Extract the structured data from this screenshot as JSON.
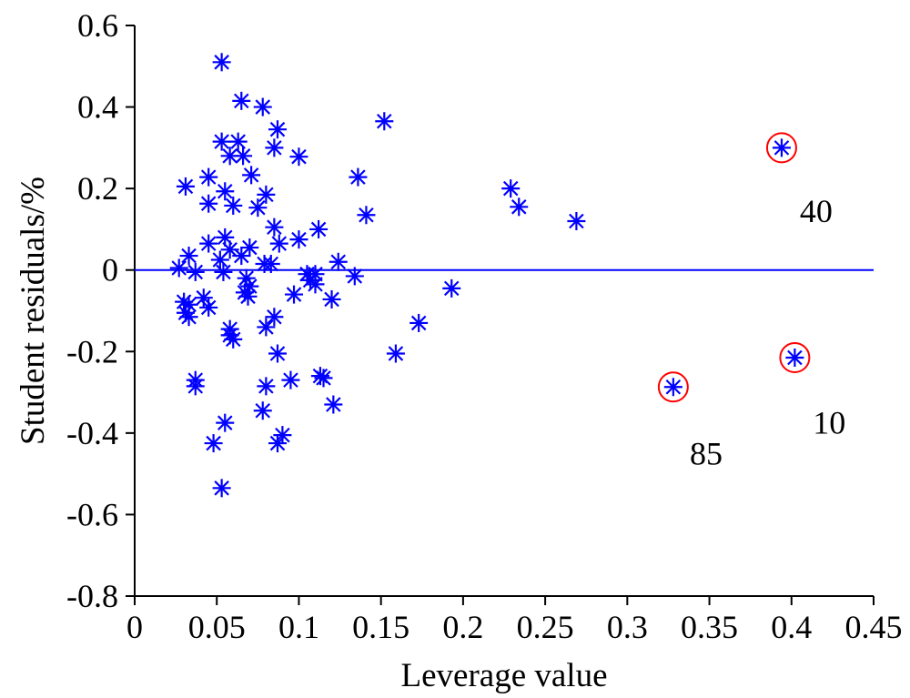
{
  "chart_data": {
    "type": "scatter",
    "title": "",
    "xlabel": "Leverage value",
    "ylabel": "Student residuals/%",
    "xlim": [
      0,
      0.45
    ],
    "ylim": [
      -0.8,
      0.6
    ],
    "x_ticks": [
      "0",
      "0.05",
      "0.1",
      "0.15",
      "0.2",
      "0.25",
      "0.3",
      "0.35",
      "0.4",
      "0.45"
    ],
    "y_ticks": [
      "0.6",
      "0.4",
      "0.2",
      "0",
      "-0.2",
      "-0.4",
      "-0.6",
      "-0.8"
    ],
    "grid": false,
    "reference_line": {
      "y": 0,
      "color": "#0000ff"
    },
    "marker_color": "#0000ff",
    "highlight_color": "#ff0000",
    "points": [
      [
        0.053,
        0.51
      ],
      [
        0.065,
        0.415
      ],
      [
        0.078,
        0.4
      ],
      [
        0.152,
        0.365
      ],
      [
        0.087,
        0.345
      ],
      [
        0.053,
        0.315
      ],
      [
        0.063,
        0.315
      ],
      [
        0.085,
        0.3
      ],
      [
        0.058,
        0.28
      ],
      [
        0.066,
        0.28
      ],
      [
        0.1,
        0.278
      ],
      [
        0.071,
        0.233
      ],
      [
        0.045,
        0.228
      ],
      [
        0.136,
        0.228
      ],
      [
        0.031,
        0.205
      ],
      [
        0.055,
        0.193
      ],
      [
        0.08,
        0.185
      ],
      [
        0.229,
        0.2
      ],
      [
        0.234,
        0.155
      ],
      [
        0.045,
        0.163
      ],
      [
        0.06,
        0.158
      ],
      [
        0.075,
        0.153
      ],
      [
        0.141,
        0.135
      ],
      [
        0.269,
        0.12
      ],
      [
        0.085,
        0.105
      ],
      [
        0.112,
        0.1
      ],
      [
        0.055,
        0.08
      ],
      [
        0.1,
        0.075
      ],
      [
        0.045,
        0.065
      ],
      [
        0.088,
        0.065
      ],
      [
        0.07,
        0.055
      ],
      [
        0.058,
        0.05
      ],
      [
        0.033,
        0.035
      ],
      [
        0.065,
        0.035
      ],
      [
        0.052,
        0.025
      ],
      [
        0.124,
        0.02
      ],
      [
        0.079,
        0.015
      ],
      [
        0.083,
        0.015
      ],
      [
        0.027,
        0.005
      ],
      [
        0.037,
        -0.005
      ],
      [
        0.054,
        -0.005
      ],
      [
        0.105,
        -0.01
      ],
      [
        0.11,
        -0.01
      ],
      [
        0.134,
        -0.015
      ],
      [
        0.068,
        -0.02
      ],
      [
        0.107,
        -0.025
      ],
      [
        0.11,
        -0.035
      ],
      [
        0.07,
        -0.04
      ],
      [
        0.193,
        -0.045
      ],
      [
        0.067,
        -0.055
      ],
      [
        0.097,
        -0.06
      ],
      [
        0.069,
        -0.065
      ],
      [
        0.042,
        -0.068
      ],
      [
        0.12,
        -0.072
      ],
      [
        0.03,
        -0.078
      ],
      [
        0.033,
        -0.085
      ],
      [
        0.045,
        -0.092
      ],
      [
        0.031,
        -0.105
      ],
      [
        0.033,
        -0.115
      ],
      [
        0.085,
        -0.115
      ],
      [
        0.173,
        -0.13
      ],
      [
        0.08,
        -0.14
      ],
      [
        0.058,
        -0.145
      ],
      [
        0.058,
        -0.16
      ],
      [
        0.06,
        -0.17
      ],
      [
        0.159,
        -0.205
      ],
      [
        0.087,
        -0.205
      ],
      [
        0.113,
        -0.26
      ],
      [
        0.037,
        -0.27
      ],
      [
        0.095,
        -0.27
      ],
      [
        0.115,
        -0.265
      ],
      [
        0.037,
        -0.285
      ],
      [
        0.08,
        -0.285
      ],
      [
        0.121,
        -0.33
      ],
      [
        0.078,
        -0.345
      ],
      [
        0.055,
        -0.375
      ],
      [
        0.09,
        -0.405
      ],
      [
        0.048,
        -0.425
      ],
      [
        0.087,
        -0.425
      ],
      [
        0.053,
        -0.535
      ]
    ],
    "highlighted_points": [
      {
        "id": "40",
        "x": 0.394,
        "y": 0.3
      },
      {
        "id": "10",
        "x": 0.402,
        "y": -0.215
      },
      {
        "id": "85",
        "x": 0.328,
        "y": -0.287
      }
    ],
    "annotations": [
      {
        "text": "40",
        "x": 0.415,
        "y": 0.145
      },
      {
        "text": "10",
        "x": 0.423,
        "y": -0.375
      },
      {
        "text": "85",
        "x": 0.348,
        "y": -0.45
      }
    ]
  }
}
